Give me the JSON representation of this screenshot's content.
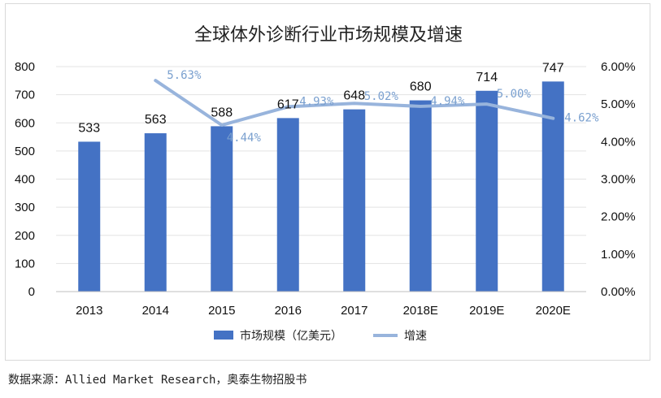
{
  "colors": {
    "bar": "#4472c4",
    "line": "#98b4dc",
    "rate_label": "#7aa0cf",
    "grid": "#e3e3e3"
  },
  "source_text": "数据来源：Allied Market Research，奥泰生物招股书",
  "chart_data": {
    "type": "bar",
    "title": "全球体外诊断行业市场规模及增速",
    "categories": [
      "2013",
      "2014",
      "2015",
      "2016",
      "2017",
      "2018E",
      "2019E",
      "2020E"
    ],
    "series": [
      {
        "name": "市场规模（亿美元）",
        "type": "bar",
        "axis": "left",
        "values": [
          533,
          563,
          588,
          617,
          648,
          680,
          714,
          747
        ]
      },
      {
        "name": "增速",
        "type": "line",
        "axis": "right",
        "values": [
          null,
          5.63,
          4.44,
          4.93,
          5.02,
          4.94,
          5.0,
          4.62
        ],
        "labels": [
          "",
          "5.63%",
          "4.44%",
          "4.93%",
          "5.02%",
          "4.94%",
          "5.00%",
          "4.62%"
        ]
      }
    ],
    "y_left": {
      "range": [
        0,
        800
      ],
      "ticks": [
        "0",
        "100",
        "200",
        "300",
        "400",
        "500",
        "600",
        "700",
        "800"
      ]
    },
    "y_right": {
      "range": [
        0,
        6
      ],
      "ticks": [
        "0.00%",
        "1.00%",
        "2.00%",
        "3.00%",
        "4.00%",
        "5.00%",
        "6.00%"
      ]
    },
    "grid": true,
    "legend_position": "bottom"
  }
}
